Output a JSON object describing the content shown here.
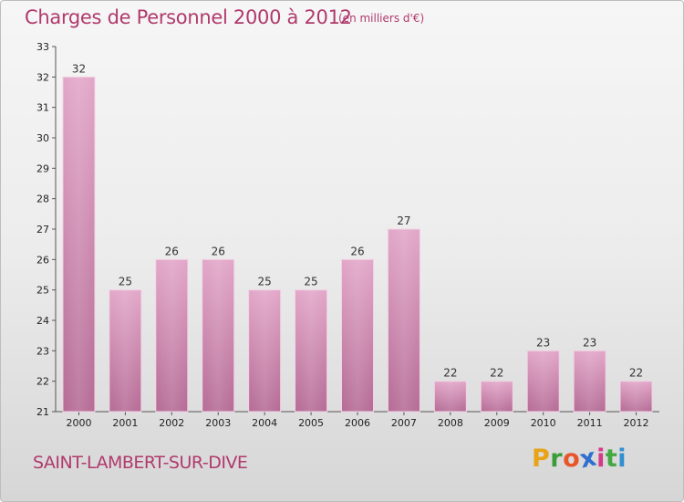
{
  "header": {
    "title": "Charges de Personnel 2000 à 2012",
    "subtitle": "(en milliers d'€)"
  },
  "footer": {
    "commune": "SAINT-LAMBERT-SUR-DIVE",
    "logo_letters": [
      "P",
      "r",
      "o",
      "x",
      "i",
      "t",
      "i"
    ],
    "logo_colors": [
      "#e8a317",
      "#3a9d3a",
      "#e8552a",
      "#2f6fd0",
      "#d43a8a",
      "#43a843",
      "#2f8fd0"
    ]
  },
  "chart_data": {
    "type": "bar",
    "categories": [
      "2000",
      "2001",
      "2002",
      "2003",
      "2004",
      "2005",
      "2006",
      "2007",
      "2008",
      "2009",
      "2010",
      "2011",
      "2012"
    ],
    "values": [
      32,
      25,
      26,
      26,
      25,
      25,
      26,
      27,
      22,
      22,
      23,
      23,
      22
    ],
    "title": "Charges de Personnel 2000 à 2012",
    "xlabel": "",
    "ylabel": "",
    "ylim": [
      21,
      33
    ],
    "yticks": [
      21,
      22,
      23,
      24,
      25,
      26,
      27,
      28,
      29,
      30,
      31,
      32,
      33
    ],
    "grid": false,
    "bar_color": "#d989b5"
  }
}
